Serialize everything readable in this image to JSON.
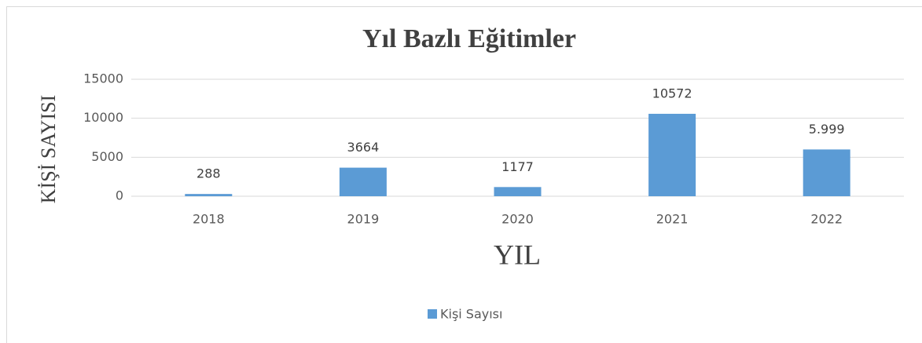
{
  "chart_data": {
    "type": "bar",
    "title": "Yıl Bazlı Eğitimler",
    "x_label": "YIL",
    "y_label": "KİŞİ SAYISI",
    "categories": [
      "2018",
      "2019",
      "2020",
      "2021",
      "2022"
    ],
    "series": [
      {
        "name": "Kişi Sayısı",
        "color": "#5b9bd5",
        "values": [
          288,
          3664,
          1177,
          10572,
          5999
        ],
        "value_labels": [
          "288",
          "3664",
          "1177",
          "10572",
          "5.999"
        ]
      }
    ],
    "ylim": [
      0,
      15000
    ],
    "yticks": [
      0,
      5000,
      10000,
      15000
    ],
    "grid": true,
    "legend": "bottom"
  }
}
